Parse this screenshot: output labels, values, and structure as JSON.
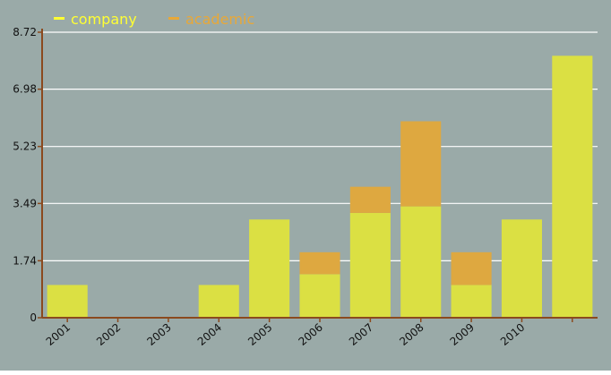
{
  "chart_data": {
    "type": "bar",
    "stacked": true,
    "categories": [
      "2001",
      "2002",
      "2003",
      "2004",
      "2005",
      "2006",
      "2007",
      "2008",
      "2009",
      "2010",
      ""
    ],
    "series": [
      {
        "name": "company",
        "color": "#dbe043",
        "values": [
          1.0,
          0,
          0,
          1.0,
          3.0,
          1.33,
          3.2,
          3.4,
          1.0,
          3.0,
          8.0
        ]
      },
      {
        "name": "academic",
        "color": "#dea840",
        "values": [
          0,
          0,
          0,
          0,
          0,
          0.67,
          0.8,
          2.6,
          1.0,
          0,
          0
        ]
      }
    ],
    "y_ticks": [
      "0",
      "1.74",
      "3.49",
      "5.23",
      "6.98",
      "8.72"
    ],
    "ylim": [
      0,
      8.72
    ],
    "grid": true,
    "legend_position": "top-left",
    "colors": {
      "background": "#9aaaa8",
      "axis": "#8b4a1e",
      "grid": "#ffffff",
      "legend_company": "#ffff33",
      "legend_academic": "#e8a838"
    }
  }
}
